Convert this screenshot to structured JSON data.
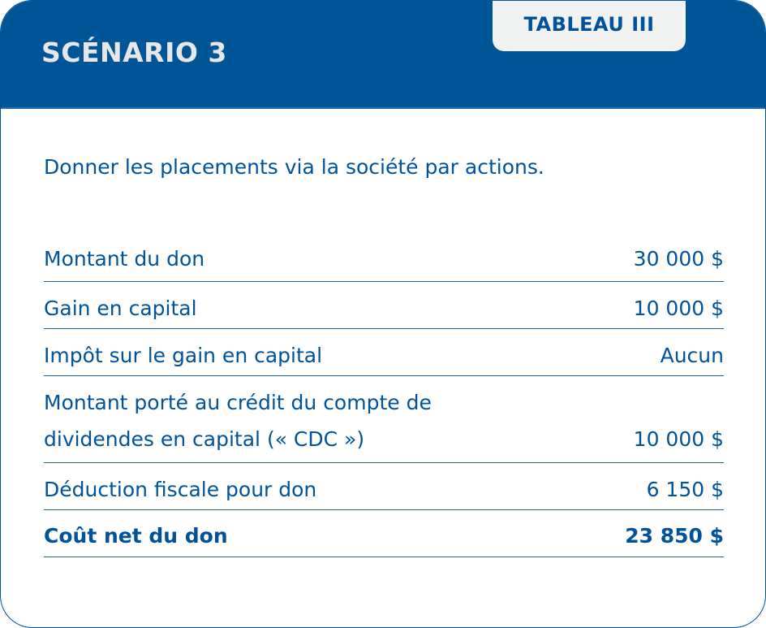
{
  "header": {
    "title": "SCÉNARIO 3",
    "tab_label": "TABLEAU III"
  },
  "intro": "Donner les placements via la société par actions.",
  "rows": [
    {
      "label": "Montant du don",
      "value": "30 000 $"
    },
    {
      "label": "Gain en capital",
      "value": "10 000 $"
    },
    {
      "label": "Impôt sur le gain en capital",
      "value": "Aucun"
    },
    {
      "label": "Montant porté au crédit du compte de dividendes en capital (« CDC »)",
      "value": "10 000 $"
    },
    {
      "label": "Déduction fiscale pour don",
      "value": "6 150 $"
    },
    {
      "label": "Coût net du don",
      "value": "23 850 $"
    }
  ],
  "colors": {
    "brand": "#005596",
    "tab_bg": "#f1f2f2",
    "text": "#00539a"
  }
}
